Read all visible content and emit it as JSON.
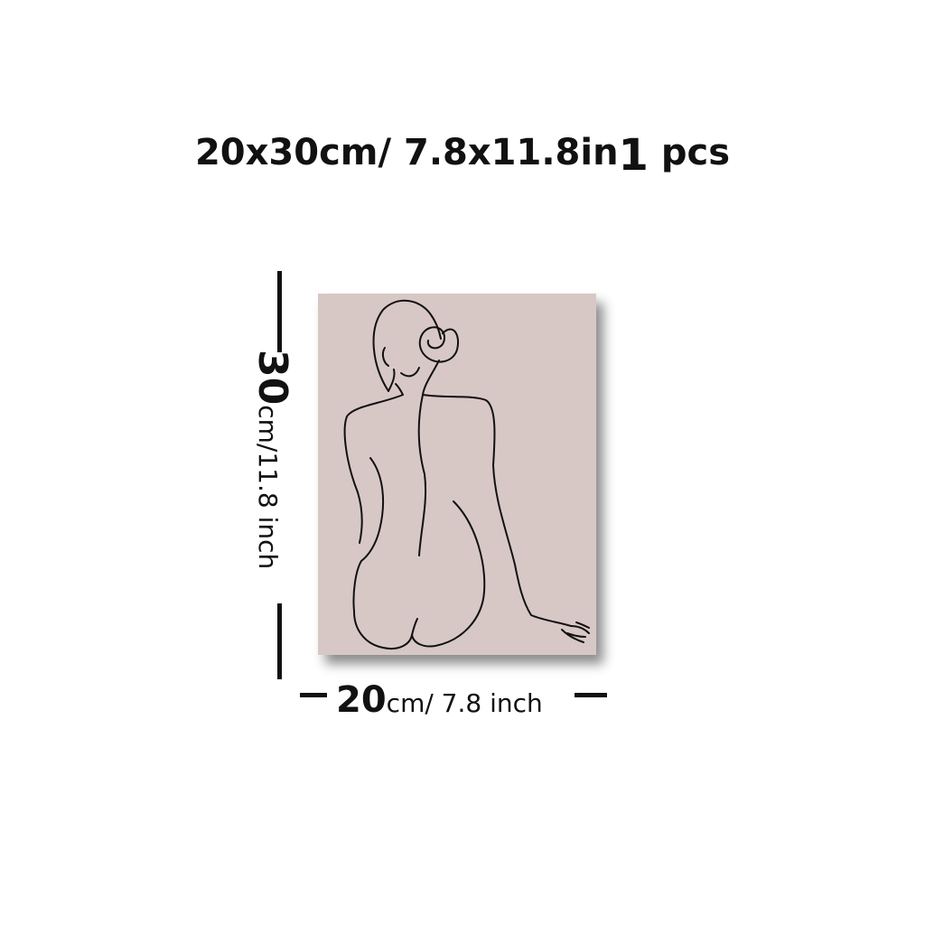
{
  "title": {
    "size_text": "20x30cm/ 7.8x11.8in",
    "count": "1",
    "unit": "pcs"
  },
  "dimensions": {
    "height_value": "30",
    "height_unit": "cm/11.8 inch",
    "width_value": "20",
    "width_unit": "cm/ 7.8 inch"
  },
  "colors": {
    "canvas": "#d7c8c6",
    "line": "#111111",
    "background": "#ffffff"
  }
}
